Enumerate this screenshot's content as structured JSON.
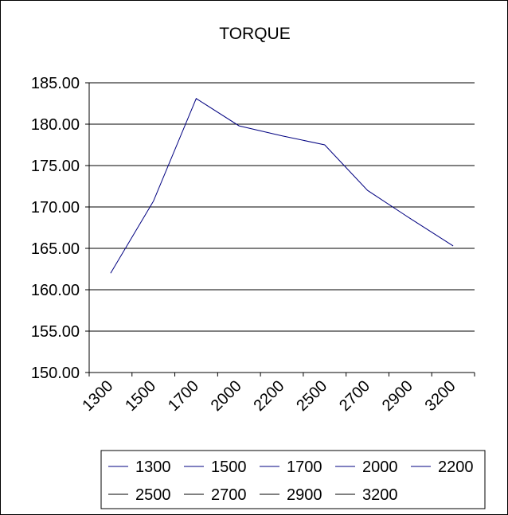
{
  "chart_data": {
    "type": "line",
    "title": "TORQUE",
    "xlabel": "",
    "ylabel": "",
    "categories": [
      "1300",
      "1500",
      "1700",
      "2000",
      "2200",
      "2500",
      "2700",
      "2900",
      "3200"
    ],
    "y_tick_labels": [
      "150.00",
      "155.00",
      "160.00",
      "165.00",
      "170.00",
      "175.00",
      "180.00",
      "185.00"
    ],
    "ylim": [
      150,
      185
    ],
    "grid": true,
    "legend_position": "bottom",
    "line_color": "#000080",
    "series": [
      {
        "values": [
          162.0,
          170.7,
          183.1,
          179.8,
          178.6,
          177.5,
          172.0,
          168.6,
          165.3
        ]
      }
    ],
    "legend_entries": [
      "1300",
      "1500",
      "1700",
      "2000",
      "2200",
      "2500",
      "2700",
      "2900",
      "3200"
    ],
    "legend_colors": [
      "#000080",
      "#000080",
      "#000080",
      "#000080",
      "#000080",
      "#000000",
      "#000000",
      "#000000",
      "#000000"
    ]
  }
}
